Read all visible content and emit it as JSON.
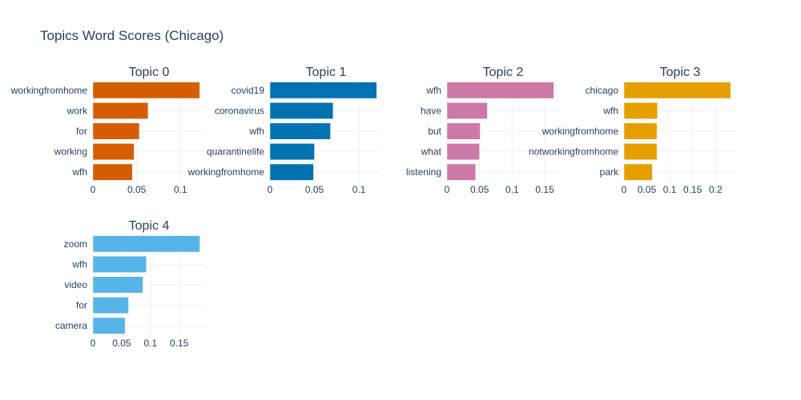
{
  "chart_data": {
    "type": "bar",
    "orientation": "horizontal",
    "title": "Topics Word Scores (Chicago)",
    "grid": true,
    "panels": [
      {
        "title": "Topic 0",
        "color": "#D55E00",
        "categories": [
          "workingfromhome",
          "work",
          "for",
          "working",
          "wfh"
        ],
        "values": [
          0.122,
          0.063,
          0.053,
          0.047,
          0.045
        ],
        "xlim": [
          0,
          0.128
        ],
        "xticks": [
          0,
          0.05,
          0.1
        ],
        "xtick_labels": [
          "0",
          "0.05",
          "0.1"
        ]
      },
      {
        "title": "Topic 1",
        "color": "#0072B2",
        "categories": [
          "covid19",
          "coronavirus",
          "wfh",
          "quarantinelife",
          "workingfromhome"
        ],
        "values": [
          0.12,
          0.071,
          0.068,
          0.05,
          0.049
        ],
        "xlim": [
          0,
          0.126
        ],
        "xticks": [
          0,
          0.05,
          0.1
        ],
        "xtick_labels": [
          "0",
          "0.05",
          "0.1"
        ]
      },
      {
        "title": "Topic 2",
        "color": "#CC79A7",
        "categories": [
          "wfh",
          "have",
          "but",
          "what",
          "listening"
        ],
        "values": [
          0.164,
          0.062,
          0.051,
          0.05,
          0.044
        ],
        "xlim": [
          0,
          0.172
        ],
        "xticks": [
          0,
          0.05,
          0.1,
          0.15
        ],
        "xtick_labels": [
          "0",
          "0.05",
          "0.1",
          "0.15"
        ]
      },
      {
        "title": "Topic 3",
        "color": "#E69F00",
        "categories": [
          "chicago",
          "wfh",
          "workingfromhome",
          "notworkingfromhome",
          "park"
        ],
        "values": [
          0.233,
          0.073,
          0.072,
          0.072,
          0.062
        ],
        "xlim": [
          0,
          0.245
        ],
        "xticks": [
          0,
          0.05,
          0.1,
          0.15,
          0.2
        ],
        "xtick_labels": [
          "0",
          "0.05",
          "0.1",
          "0.15",
          "0.2"
        ]
      },
      {
        "title": "Topic 4",
        "color": "#56B4E9",
        "categories": [
          "zoom",
          "wfh",
          "video",
          "for",
          "camera"
        ],
        "values": [
          0.186,
          0.093,
          0.087,
          0.062,
          0.056
        ],
        "xlim": [
          0,
          0.195
        ],
        "xticks": [
          0,
          0.05,
          0.1,
          0.15
        ],
        "xtick_labels": [
          "0",
          "0.05",
          "0.1",
          "0.15"
        ]
      }
    ]
  }
}
